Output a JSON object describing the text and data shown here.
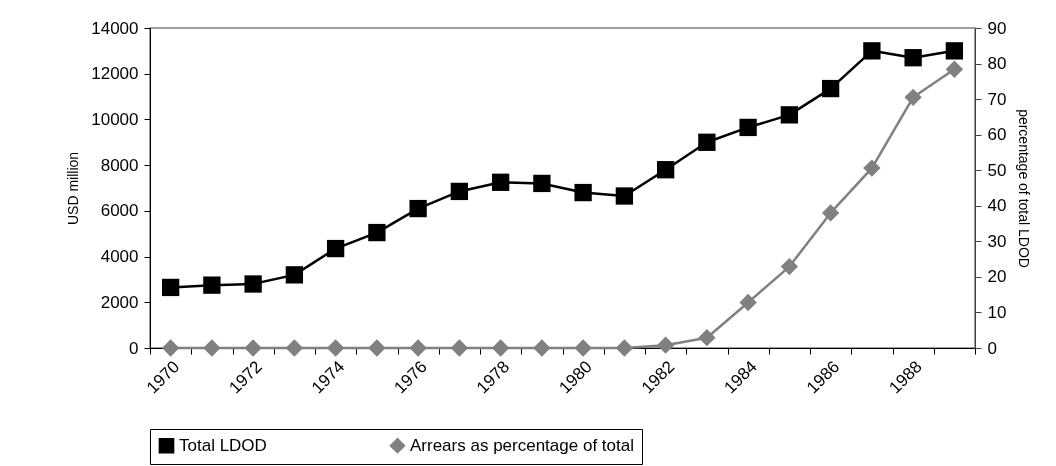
{
  "chart_data": {
    "type": "line",
    "categories": [
      "1970",
      null,
      "1972",
      null,
      "1974",
      null,
      "1976",
      null,
      "1978",
      null,
      "1980",
      null,
      "1982",
      null,
      "1984",
      null,
      "1986",
      null,
      "1988",
      null
    ],
    "ylabel": "USD million",
    "y2label": "percentage of total LDOD",
    "ylim": [
      0,
      14000
    ],
    "yticks": [
      0,
      2000,
      4000,
      6000,
      8000,
      10000,
      12000,
      14000
    ],
    "y2lim": [
      0,
      90
    ],
    "y2ticks": [
      0,
      10,
      20,
      30,
      40,
      50,
      60,
      70,
      80,
      90
    ],
    "legend": "bottom",
    "series": [
      {
        "name": "Total LDOD",
        "color": "#000000",
        "marker": "square",
        "values": [
          2650,
          2750,
          2800,
          3200,
          4350,
          5050,
          6100,
          6850,
          7250,
          7200,
          6800,
          6650,
          7800,
          9000,
          9650,
          10200,
          11350,
          13000,
          12700,
          13000
        ]
      },
      {
        "name": "Arrears as percentage of total",
        "color": "#808080",
        "marker": "diamond",
        "axis": "y2",
        "values": [
          0,
          0,
          0,
          0,
          0,
          0,
          0,
          0,
          0,
          0,
          0,
          0,
          0.8,
          2.9,
          12.8,
          22.9,
          38.0,
          50.6,
          70.5,
          78.4
        ]
      }
    ]
  }
}
